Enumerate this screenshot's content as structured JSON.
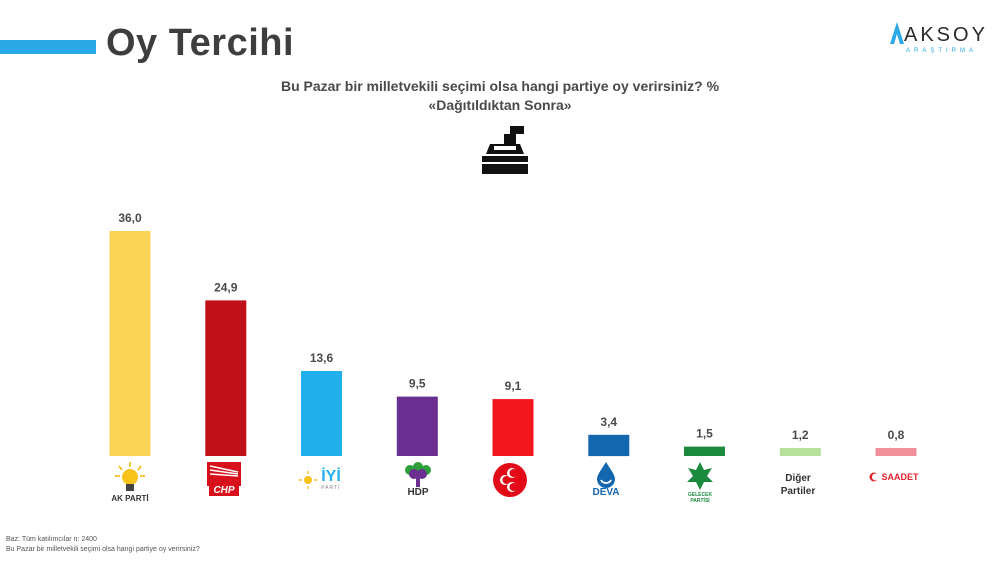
{
  "header": {
    "title": "Oy Tercihi",
    "logo_main": "AKSOY",
    "logo_sub": "ARAŞTIRMA"
  },
  "colors": {
    "accent": "#2aa9e6"
  },
  "icons": {
    "ballot": "ballot-box-icon"
  },
  "chart_data": {
    "type": "bar",
    "title": "Bu Pazar bir milletvekili seçimi olsa hangi partiye oy verirsiniz? %",
    "subtitle": "«Dağıtıldıktan Sonra»",
    "categories": [
      "AK PARTİ",
      "CHP",
      "İYİ",
      "HDP",
      "MHP",
      "DEVA",
      "GELECEK PARTİSİ",
      "Diğer Partiler",
      "SAADET"
    ],
    "values": [
      36.0,
      24.9,
      13.6,
      9.5,
      9.1,
      3.4,
      1.5,
      1.2,
      0.8
    ],
    "value_labels": [
      "36,0",
      "24,9",
      "13,6",
      "9,5",
      "9,1",
      "3,4",
      "1,5",
      "1,2",
      "0,8"
    ],
    "colors": [
      "#fbd455",
      "#c0101a",
      "#22b0ec",
      "#6b2e91",
      "#f2161d",
      "#1367ae",
      "#1b8a3e",
      "#b5e19a",
      "#f0909b"
    ],
    "ylim": [
      0,
      36
    ],
    "grid": false,
    "legend": "none"
  },
  "party_marks": {
    "akp": "AK PARTİ",
    "chp": "CHP",
    "iyi": "İYİ",
    "iyi_sub": "PARTİ",
    "hdp": "HDP",
    "deva": "DEVA",
    "gelecek": "GELECEK PARTİSİ",
    "diger_line1": "Diğer",
    "diger_line2": "Partiler",
    "saadet": "SAADET"
  },
  "footnotes": {
    "base": "Baz: Tüm katılımcılar n: 2400",
    "question": "Bu Pazar bir milletvekili seçimi olsa hangi partiye oy verirsiniz?"
  }
}
